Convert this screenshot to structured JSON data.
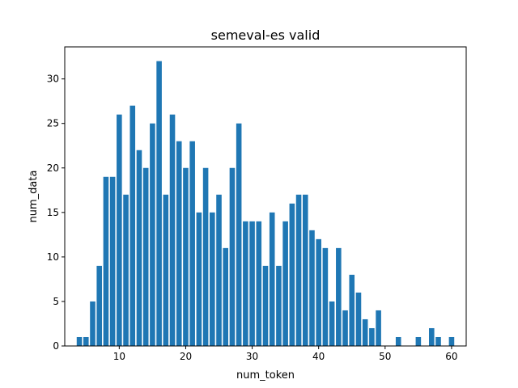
{
  "chart_data": {
    "type": "bar",
    "title": "semeval-es valid",
    "xlabel": "num_token",
    "ylabel": "num_data",
    "xlim": [
      1.8,
      62.2
    ],
    "ylim": [
      0,
      33.6
    ],
    "xticks": [
      10,
      20,
      30,
      40,
      50,
      60
    ],
    "yticks": [
      0,
      5,
      10,
      15,
      20,
      25,
      30
    ],
    "bar_color": "#1f77b4",
    "grid": false,
    "x": [
      4,
      5,
      6,
      7,
      8,
      9,
      10,
      11,
      12,
      13,
      14,
      15,
      16,
      17,
      18,
      19,
      20,
      21,
      22,
      23,
      24,
      25,
      26,
      27,
      28,
      29,
      30,
      31,
      32,
      33,
      34,
      35,
      36,
      37,
      38,
      39,
      40,
      41,
      42,
      43,
      44,
      45,
      46,
      47,
      48,
      49,
      52,
      55,
      57,
      58,
      60
    ],
    "values": [
      1,
      1,
      5,
      9,
      19,
      19,
      26,
      17,
      27,
      22,
      20,
      25,
      32,
      17,
      26,
      23,
      20,
      23,
      15,
      20,
      15,
      17,
      11,
      20,
      25,
      14,
      14,
      14,
      9,
      15,
      9,
      14,
      16,
      17,
      17,
      13,
      12,
      11,
      5,
      11,
      4,
      8,
      6,
      3,
      2,
      4,
      1,
      1,
      2,
      1,
      1
    ]
  }
}
